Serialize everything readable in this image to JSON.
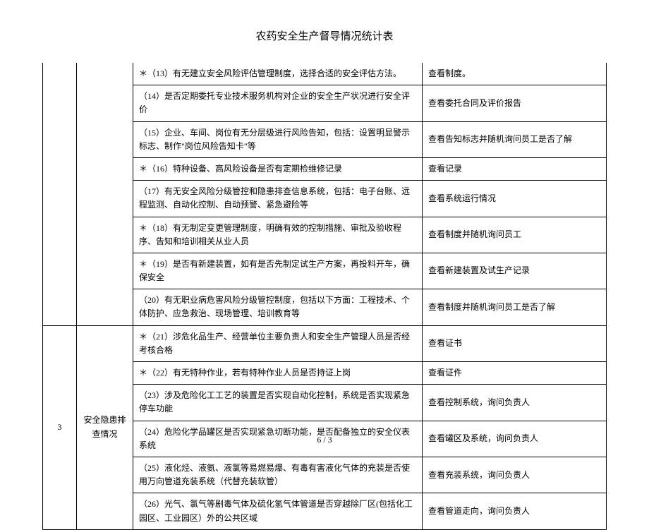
{
  "title": "农药安全生产督导情况统计表",
  "footer": "6 / 3",
  "section_top": {
    "num": "",
    "category": "",
    "rows": [
      {
        "item": "＊（13）有无建立安全风险评估管理制度，选择合适的安全评估方法。",
        "check": "查看制度。"
      },
      {
        "item": "（14）是否定期委托专业技术服务机构对企业的安全生产状况进行安全评价",
        "check": "查看委托合同及评价报告"
      },
      {
        "item": "（15）企业、车间、岗位有无分层级进行风险告知，包括：设置明显警示标志、制作\"岗位风险告知卡\"等",
        "check": "查看告知标志并随机询问员工是否了解"
      },
      {
        "item": "＊（16）特种设备、高风险设备是否有定期检维修记录",
        "check": "查看记录"
      },
      {
        "item": "（17）有无安全风险分级管控和隐患排查信息系统，包括：电子台账、远程监测、自动化控制、自动预警、紧急避险等",
        "check": "查看系统运行情况"
      },
      {
        "item": "＊（18）有无制定变更管理制度，明确有效的控制措施、审批及验收程序、告知和培训相关从业人员",
        "check": "查看制度并随机询问员工"
      },
      {
        "item": "＊（19）是否有新建装置，如有是否先制定试生产方案，再投料开车，确保安全",
        "check": "查看新建装置及试生产记录"
      },
      {
        "item": "（20）有无职业病危害风险分级管控制度，包括以下方面：工程技术、个体防护、应急救治、现场管理、培训教育等",
        "check": "查看制度并随机询问员工是否了解"
      }
    ]
  },
  "section_bottom": {
    "num": "3",
    "category": "安全隐患排查情况",
    "rows": [
      {
        "item": "＊（21）涉危化品生产、经营单位主要负责人和安全生产管理人员是否经考核合格",
        "check": "查看证书"
      },
      {
        "item": "＊（22）有无特种作业，若有特种作业人员是否持证上岗",
        "check": "查看证件"
      },
      {
        "item": "（23）涉及危险化工工艺的装置是否实现自动化控制，系统是否实现紧急停车功能",
        "check": "查看控制系统，询问负责人"
      },
      {
        "item": "（24）危险化学品罐区是否实现紧急切断功能，是否配备独立的安全仪表系统",
        "check": "查看罐区及系统，询问负责人"
      },
      {
        "item": "（25）液化烃、液氨、液氯等易燃易爆、有毒有害液化气体的充装是否使用万向管道充装系统（代替充装软管）",
        "check": "查看充装系统，询问负责人"
      },
      {
        "item": "（26）光气、氯气等剧毒气体及硫化氢气体管道是否穿越除厂区(包括化工园区、工业园区）外的公共区域",
        "check": "查看管道走向，询问负责人"
      }
    ]
  }
}
